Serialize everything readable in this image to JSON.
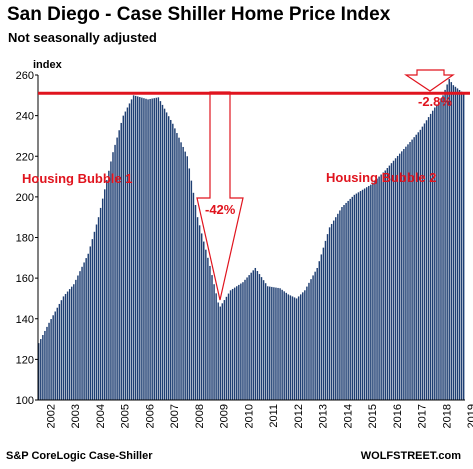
{
  "header": {
    "title": "San Diego - Case Shiller Home Price Index",
    "subtitle": "Not seasonally adjusted"
  },
  "footer": {
    "source": "S&P CoreLogic Case-Shiller",
    "brand": "WOLFSTREET.com"
  },
  "colors": {
    "bar": "#1f3f73",
    "annotation": "#e0141e"
  },
  "chart_data": {
    "type": "bar",
    "title": "San Diego - Case Shiller Home Price Index",
    "subtitle": "Not seasonally adjusted",
    "ylabel": "index",
    "xlabel": "",
    "ylim": [
      100,
      260
    ],
    "yticks": [
      100,
      120,
      140,
      160,
      180,
      200,
      220,
      240,
      260
    ],
    "x_start": "2002-01",
    "x_end": "2019-03",
    "xtick_labels": [
      "2002",
      "2003",
      "2004",
      "2005",
      "2006",
      "2007",
      "2008",
      "2009",
      "2010",
      "2011",
      "2012",
      "2013",
      "2014",
      "2015",
      "2016",
      "2017",
      "2018",
      "2019"
    ],
    "grid": false,
    "series": [
      {
        "frequency": "monthly",
        "anchor_points": [
          [
            "2002-01",
            128
          ],
          [
            "2002-06",
            138
          ],
          [
            "2003-01",
            151
          ],
          [
            "2003-06",
            157
          ],
          [
            "2004-01",
            172
          ],
          [
            "2004-06",
            190
          ],
          [
            "2005-01",
            222
          ],
          [
            "2005-06",
            240
          ],
          [
            "2005-11",
            250
          ],
          [
            "2006-06",
            248
          ],
          [
            "2006-11",
            249
          ],
          [
            "2007-06",
            236
          ],
          [
            "2008-01",
            220
          ],
          [
            "2008-06",
            190
          ],
          [
            "2008-12",
            166
          ],
          [
            "2009-04",
            148
          ],
          [
            "2009-05",
            146
          ],
          [
            "2009-10",
            154
          ],
          [
            "2010-04",
            158
          ],
          [
            "2010-10",
            165
          ],
          [
            "2011-04",
            156
          ],
          [
            "2011-10",
            155
          ],
          [
            "2012-02",
            152
          ],
          [
            "2012-06",
            150
          ],
          [
            "2012-10",
            154
          ],
          [
            "2013-04",
            165
          ],
          [
            "2013-10",
            185
          ],
          [
            "2014-04",
            195
          ],
          [
            "2014-10",
            201
          ],
          [
            "2015-06",
            206
          ],
          [
            "2016-01",
            213
          ],
          [
            "2016-06",
            219
          ],
          [
            "2017-01",
            227
          ],
          [
            "2017-06",
            233
          ],
          [
            "2018-01",
            244
          ],
          [
            "2018-05",
            250
          ],
          [
            "2018-08",
            258
          ],
          [
            "2018-10",
            255
          ],
          [
            "2019-03",
            251
          ]
        ]
      }
    ],
    "annotations": [
      {
        "text": "Housing Bubble 1"
      },
      {
        "text": "Housing Bubble 2"
      },
      {
        "text": "-42%"
      },
      {
        "text": "-2.8%"
      }
    ],
    "reference_line": {
      "y": 251
    }
  }
}
